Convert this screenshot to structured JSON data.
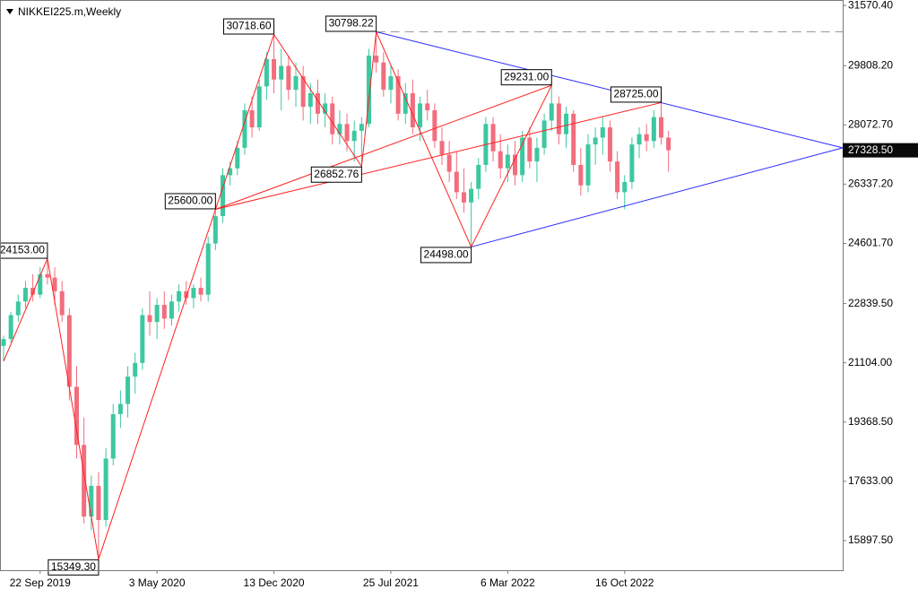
{
  "chart_data": {
    "type": "candlestick",
    "title": "NIKKEI225.m,Weekly",
    "categories": [
      null,
      null,
      null,
      null,
      null,
      "22 Sep 2019",
      null,
      null,
      null,
      null,
      null,
      null,
      null,
      null,
      null,
      null,
      null,
      null,
      null,
      null,
      null,
      "3 May 2020",
      null,
      null,
      null,
      null,
      null,
      null,
      null,
      null,
      null,
      null,
      null,
      null,
      null,
      null,
      null,
      "13 Dec 2020",
      null,
      null,
      null,
      null,
      null,
      null,
      null,
      null,
      null,
      null,
      null,
      null,
      null,
      null,
      null,
      "25 Jul 2021",
      null,
      null,
      null,
      null,
      null,
      null,
      null,
      null,
      null,
      null,
      null,
      null,
      null,
      null,
      null,
      "6 Mar 2022",
      null,
      null,
      null,
      null,
      null,
      null,
      null,
      null,
      null,
      null,
      null,
      null,
      null,
      null,
      null,
      "16 Oct 2022",
      null,
      null,
      null,
      null,
      null,
      null
    ],
    "open": [
      21600,
      21800,
      22500,
      22900,
      23300,
      23100,
      23700,
      23600,
      23200,
      22500,
      20400,
      18700,
      16600,
      17500,
      16500,
      18300,
      19600,
      19900,
      20700,
      21100,
      22500,
      22300,
      22800,
      22400,
      22900,
      23200,
      23000,
      23300,
      23100,
      24600,
      25400,
      26600,
      26800,
      27400,
      28500,
      28000,
      29200,
      30000,
      29400,
      29800,
      29100,
      29500,
      28600,
      29000,
      28400,
      28700,
      27800,
      28100,
      27600,
      27900,
      28100,
      30100,
      29900,
      29100,
      29500,
      28400,
      29000,
      28000,
      28700,
      28500,
      27600,
      27200,
      26700,
      26100,
      25800,
      26200,
      26900,
      28100,
      27300,
      26800,
      27200,
      26600,
      27700,
      27000,
      27400,
      28200,
      28700,
      27800,
      28400,
      26900,
      26300,
      27500,
      27700,
      28000,
      27000,
      26100,
      26400,
      27500,
      27800,
      27600,
      28300,
      27700
    ],
    "high": [
      21900,
      22600,
      23100,
      23500,
      23700,
      23900,
      24153,
      23900,
      23500,
      22700,
      21000,
      19500,
      17800,
      17900,
      18600,
      19900,
      20300,
      21000,
      21400,
      22700,
      23200,
      23000,
      23200,
      23100,
      23400,
      23500,
      23400,
      23600,
      24800,
      25600,
      26800,
      27000,
      27600,
      28700,
      28900,
      29400,
      30200,
      30718.6,
      30300,
      30100,
      29900,
      29800,
      29300,
      29400,
      29000,
      28900,
      28500,
      28400,
      28200,
      28300,
      30300,
      30798.22,
      30200,
      29800,
      29700,
      29300,
      29400,
      28900,
      29100,
      28700,
      28000,
      27600,
      27300,
      26800,
      26400,
      27100,
      28300,
      28300,
      27800,
      27500,
      27600,
      27900,
      28000,
      27700,
      28400,
      29231,
      28900,
      28600,
      28500,
      27400,
      27800,
      28000,
      28300,
      28200,
      27300,
      26600,
      27700,
      28000,
      28100,
      28500,
      28725,
      27900
    ],
    "low": [
      21150,
      21700,
      22300,
      22700,
      22900,
      23000,
      23400,
      22800,
      22300,
      20000,
      18300,
      16400,
      16200,
      15349.3,
      16300,
      18100,
      19200,
      19500,
      20200,
      20900,
      21900,
      21800,
      22100,
      22200,
      22600,
      22800,
      22700,
      22900,
      22900,
      24400,
      25200,
      26300,
      26600,
      27200,
      27700,
      27900,
      28800,
      29000,
      28500,
      28800,
      28600,
      28200,
      28100,
      28100,
      28000,
      27500,
      27500,
      27300,
      27000,
      26852.76,
      28000,
      29600,
      28900,
      28700,
      28200,
      28100,
      27800,
      27600,
      28200,
      27400,
      26900,
      26400,
      25900,
      25500,
      24498,
      25900,
      26700,
      27000,
      26500,
      26400,
      26300,
      26400,
      26800,
      26400,
      27200,
      27900,
      27500,
      27400,
      26700,
      26000,
      26100,
      26900,
      27200,
      26700,
      25900,
      25600,
      26200,
      27100,
      27300,
      27400,
      27500,
      26700
    ],
    "close": [
      21800,
      22500,
      22900,
      23300,
      23100,
      23700,
      23600,
      23200,
      22500,
      20400,
      18700,
      16600,
      17500,
      16500,
      18300,
      19600,
      19900,
      20700,
      21100,
      22500,
      22300,
      22800,
      22400,
      22900,
      23200,
      23000,
      23300,
      23100,
      24600,
      25400,
      26600,
      26800,
      27400,
      28500,
      28000,
      29200,
      30000,
      29400,
      29800,
      29100,
      29500,
      28600,
      29000,
      28400,
      28700,
      27800,
      28100,
      27600,
      27900,
      28100,
      30100,
      29900,
      29100,
      29500,
      28400,
      29000,
      28000,
      28700,
      28500,
      27600,
      27200,
      26700,
      26100,
      25800,
      26200,
      26900,
      28100,
      27300,
      26800,
      27200,
      26600,
      27700,
      27000,
      27400,
      28200,
      28700,
      27800,
      28400,
      26900,
      26300,
      27500,
      27700,
      28000,
      27000,
      26100,
      26400,
      27500,
      27800,
      27600,
      28300,
      27700,
      27328.5
    ],
    "up_color": "#3cc8a0",
    "down_color": "#f26d7d",
    "ylim": [
      15030,
      31730
    ],
    "yticks": [
      {
        "value": 31570.4,
        "label": "31570.40"
      },
      {
        "value": 29808.2,
        "label": "29808.20"
      },
      {
        "value": 28072.7,
        "label": "28072.70"
      },
      {
        "value": 26337.2,
        "label": "26337.20"
      },
      {
        "value": 24601.7,
        "label": "24601.70"
      },
      {
        "value": 22839.5,
        "label": "22839.50"
      },
      {
        "value": 21104,
        "label": "21104.00"
      },
      {
        "value": 19368.5,
        "label": "19368.50"
      },
      {
        "value": 17633,
        "label": "17633.00"
      },
      {
        "value": 15897.5,
        "label": "15897.50"
      }
    ],
    "zigzag": {
      "color": "#ff2020",
      "values": [
        21150,
        24153,
        15349.3,
        30718.6,
        26852.76,
        30798.22,
        24498,
        29231,
        25600,
        28725
      ],
      "value_labels": [
        null,
        "24153.00",
        "15349.30",
        "30718.60",
        "26852.76",
        "30798.22",
        "24498.00",
        "29231.00",
        "25600.00",
        "28725.00"
      ]
    },
    "trendlines": {
      "color": "#2a2aff",
      "upper": [
        30798.22,
        27400
      ],
      "lower": [
        24498,
        27400
      ],
      "dashed_level": true
    },
    "last_price": {
      "value": 27328.5,
      "label": "27328.50"
    }
  }
}
